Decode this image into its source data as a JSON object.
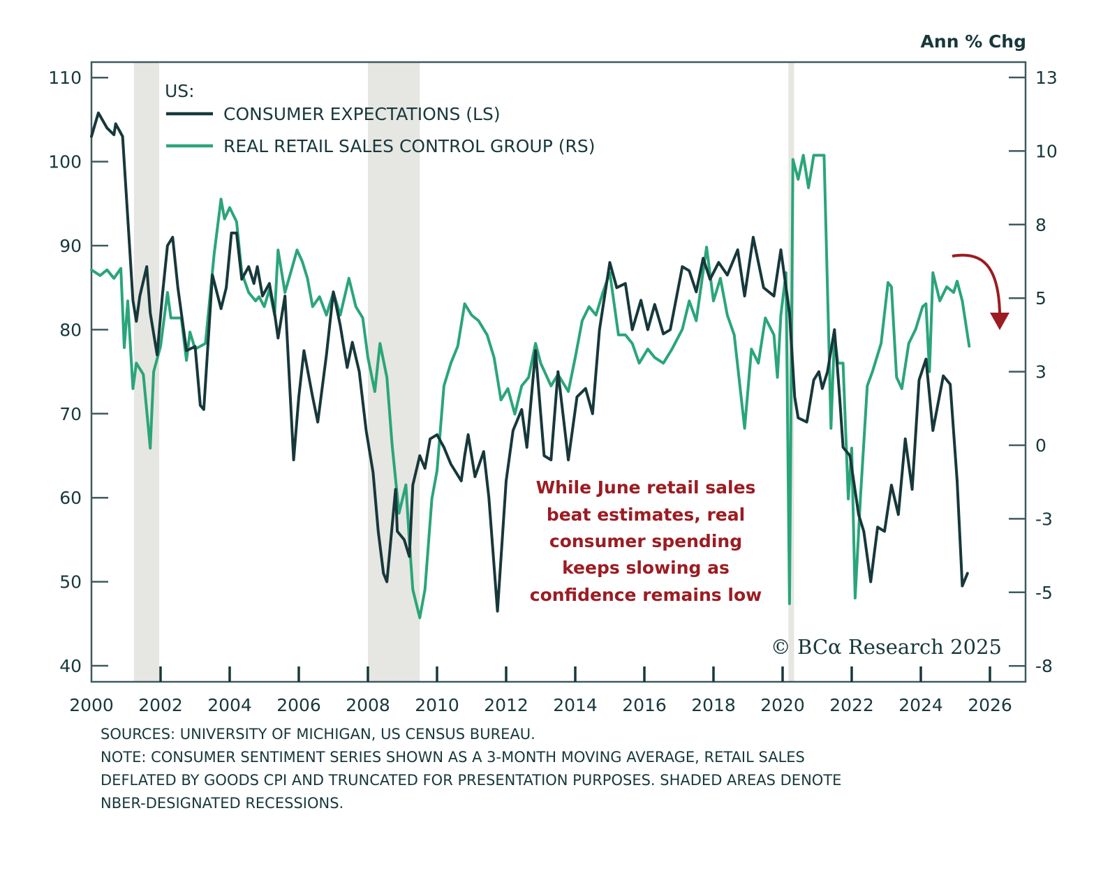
{
  "chart_data": {
    "type": "line",
    "title": "",
    "right_axis_label": "Ann % Chg",
    "legend": {
      "region_label": "US:",
      "entries": [
        {
          "name": "CONSUMER EXPECTATIONS (LS)",
          "color": "#17383b"
        },
        {
          "name": "REAL RETAIL SALES CONTROL GROUP (RS)",
          "color": "#2aa57a"
        }
      ],
      "placement": "top-left"
    },
    "x_axis": {
      "min": 2000,
      "max": 2026.5,
      "ticks": [
        "2000",
        "2002",
        "2004",
        "2006",
        "2008",
        "2010",
        "2012",
        "2014",
        "2016",
        "2018",
        "2020",
        "2022",
        "2024",
        "2026"
      ]
    },
    "left_axis": {
      "min": 38,
      "max": 113.5,
      "ticks": [
        110,
        100,
        90,
        80,
        70,
        60,
        50,
        40
      ]
    },
    "right_axis": {
      "tick_values": [
        13,
        10.4,
        7.8,
        5.2,
        2.6,
        0,
        -2.6,
        -5.2,
        -7.8
      ],
      "tick_labels": [
        "13",
        "10",
        "8",
        "5",
        "3",
        "0",
        "-3",
        "-5",
        "-8"
      ]
    },
    "recessions": [
      [
        2001.23,
        2001.96
      ],
      [
        2008.0,
        2009.5
      ],
      [
        2020.17,
        2020.33
      ]
    ],
    "series": [
      {
        "name": "CONSUMER EXPECTATIONS (LS)",
        "axis": "left",
        "color": "#17383b",
        "points": [
          [
            2000.0,
            103
          ],
          [
            2000.2,
            105.8
          ],
          [
            2000.45,
            104
          ],
          [
            2000.65,
            103.2
          ],
          [
            2000.7,
            104.5
          ],
          [
            2000.9,
            103
          ],
          [
            2001.07,
            92
          ],
          [
            2001.2,
            83.5
          ],
          [
            2001.3,
            81
          ],
          [
            2001.4,
            84
          ],
          [
            2001.6,
            87.5
          ],
          [
            2001.7,
            82
          ],
          [
            2001.9,
            77
          ],
          [
            2002.05,
            84
          ],
          [
            2002.2,
            90
          ],
          [
            2002.35,
            91
          ],
          [
            2002.5,
            85
          ],
          [
            2002.75,
            77.5
          ],
          [
            2003.0,
            78
          ],
          [
            2003.15,
            71
          ],
          [
            2003.25,
            70.5
          ],
          [
            2003.5,
            86.5
          ],
          [
            2003.75,
            82.5
          ],
          [
            2003.9,
            85
          ],
          [
            2004.05,
            91.5
          ],
          [
            2004.2,
            91.5
          ],
          [
            2004.35,
            86
          ],
          [
            2004.55,
            87.5
          ],
          [
            2004.7,
            85.5
          ],
          [
            2004.8,
            87.5
          ],
          [
            2004.95,
            84
          ],
          [
            2005.15,
            85.5
          ],
          [
            2005.3,
            82
          ],
          [
            2005.4,
            79
          ],
          [
            2005.6,
            84
          ],
          [
            2005.85,
            64.5
          ],
          [
            2006.0,
            72
          ],
          [
            2006.15,
            77.5
          ],
          [
            2006.4,
            72
          ],
          [
            2006.55,
            69
          ],
          [
            2006.8,
            77
          ],
          [
            2007.0,
            84.5
          ],
          [
            2007.2,
            80.5
          ],
          [
            2007.4,
            75.5
          ],
          [
            2007.55,
            78.5
          ],
          [
            2007.75,
            75
          ],
          [
            2007.95,
            68
          ],
          [
            2008.15,
            63
          ],
          [
            2008.3,
            56
          ],
          [
            2008.45,
            51
          ],
          [
            2008.55,
            50
          ],
          [
            2008.8,
            61
          ],
          [
            2008.85,
            56
          ],
          [
            2009.05,
            55
          ],
          [
            2009.2,
            53
          ],
          [
            2009.3,
            61.5
          ],
          [
            2009.5,
            65
          ],
          [
            2009.65,
            63.5
          ],
          [
            2009.8,
            67
          ],
          [
            2010.0,
            67.5
          ],
          [
            2010.2,
            66
          ],
          [
            2010.4,
            64
          ],
          [
            2010.7,
            62
          ],
          [
            2010.8,
            65
          ],
          [
            2010.9,
            67.5
          ],
          [
            2011.1,
            62.5
          ],
          [
            2011.35,
            65.5
          ],
          [
            2011.5,
            60
          ],
          [
            2011.75,
            46.5
          ],
          [
            2012.0,
            62
          ],
          [
            2012.2,
            68
          ],
          [
            2012.45,
            70.5
          ],
          [
            2012.6,
            66
          ],
          [
            2012.85,
            77.5
          ],
          [
            2013.1,
            65
          ],
          [
            2013.3,
            64.5
          ],
          [
            2013.5,
            75
          ],
          [
            2013.8,
            64.5
          ],
          [
            2014.05,
            72
          ],
          [
            2014.3,
            73
          ],
          [
            2014.5,
            70
          ],
          [
            2014.7,
            80
          ],
          [
            2015.0,
            88
          ],
          [
            2015.2,
            85
          ],
          [
            2015.45,
            85.5
          ],
          [
            2015.65,
            80
          ],
          [
            2015.9,
            83.5
          ],
          [
            2016.1,
            80
          ],
          [
            2016.3,
            83
          ],
          [
            2016.55,
            79.5
          ],
          [
            2016.75,
            80
          ],
          [
            2017.1,
            87.5
          ],
          [
            2017.3,
            87
          ],
          [
            2017.5,
            84.5
          ],
          [
            2017.7,
            88.5
          ],
          [
            2017.9,
            86
          ],
          [
            2018.15,
            88
          ],
          [
            2018.4,
            86.5
          ],
          [
            2018.7,
            89.5
          ],
          [
            2018.9,
            84
          ],
          [
            2019.15,
            91
          ],
          [
            2019.45,
            85
          ],
          [
            2019.75,
            84
          ],
          [
            2019.95,
            89.5
          ],
          [
            2020.2,
            82
          ],
          [
            2020.35,
            72
          ],
          [
            2020.45,
            69.5
          ],
          [
            2020.7,
            69
          ],
          [
            2020.9,
            74
          ],
          [
            2021.05,
            75
          ],
          [
            2021.15,
            73
          ],
          [
            2021.3,
            75
          ],
          [
            2021.5,
            80
          ],
          [
            2021.65,
            72
          ],
          [
            2021.75,
            66
          ],
          [
            2021.95,
            65
          ],
          [
            2022.2,
            58
          ],
          [
            2022.35,
            56
          ],
          [
            2022.55,
            50
          ],
          [
            2022.75,
            56.5
          ],
          [
            2022.95,
            56
          ],
          [
            2023.15,
            61.5
          ],
          [
            2023.35,
            58
          ],
          [
            2023.55,
            67
          ],
          [
            2023.75,
            61
          ],
          [
            2023.95,
            74
          ],
          [
            2024.15,
            76.5
          ],
          [
            2024.35,
            68
          ],
          [
            2024.65,
            74.5
          ],
          [
            2024.85,
            73.5
          ],
          [
            2025.05,
            62
          ],
          [
            2025.2,
            49.5
          ],
          [
            2025.35,
            51
          ]
        ]
      },
      {
        "name": "REAL RETAIL SALES CONTROL GROUP (RS)",
        "axis": "right",
        "color": "#2aa57a",
        "points": [
          [
            2000.0,
            6.2
          ],
          [
            2000.25,
            6.0
          ],
          [
            2000.45,
            6.2
          ],
          [
            2000.65,
            5.9
          ],
          [
            2000.85,
            6.25
          ],
          [
            2000.95,
            3.45
          ],
          [
            2001.05,
            5.1
          ],
          [
            2001.2,
            2.0
          ],
          [
            2001.3,
            2.9
          ],
          [
            2001.5,
            2.5
          ],
          [
            2001.7,
            -0.1
          ],
          [
            2001.8,
            2.6
          ],
          [
            2002.0,
            3.5
          ],
          [
            2002.2,
            5.4
          ],
          [
            2002.3,
            4.5
          ],
          [
            2002.6,
            4.5
          ],
          [
            2002.75,
            3.0
          ],
          [
            2002.85,
            4.0
          ],
          [
            2003.0,
            3.4
          ],
          [
            2003.3,
            3.6
          ],
          [
            2003.55,
            6.75
          ],
          [
            2003.75,
            8.7
          ],
          [
            2003.85,
            8.0
          ],
          [
            2004.0,
            8.4
          ],
          [
            2004.2,
            7.9
          ],
          [
            2004.35,
            6.1
          ],
          [
            2004.55,
            5.4
          ],
          [
            2004.75,
            5.1
          ],
          [
            2004.85,
            5.25
          ],
          [
            2005.0,
            4.9
          ],
          [
            2005.15,
            5.5
          ],
          [
            2005.3,
            4.6
          ],
          [
            2005.4,
            6.9
          ],
          [
            2005.6,
            5.4
          ],
          [
            2005.8,
            6.25
          ],
          [
            2005.95,
            6.9
          ],
          [
            2006.1,
            6.5
          ],
          [
            2006.25,
            5.9
          ],
          [
            2006.4,
            4.9
          ],
          [
            2006.6,
            5.25
          ],
          [
            2006.8,
            4.6
          ],
          [
            2007.0,
            5.4
          ],
          [
            2007.2,
            4.6
          ],
          [
            2007.45,
            5.9
          ],
          [
            2007.65,
            4.9
          ],
          [
            2007.85,
            4.5
          ],
          [
            2008.0,
            3.1
          ],
          [
            2008.2,
            1.9
          ],
          [
            2008.35,
            3.6
          ],
          [
            2008.55,
            2.4
          ],
          [
            2008.7,
            0
          ],
          [
            2008.9,
            -2.4
          ],
          [
            2009.1,
            -1.4
          ],
          [
            2009.2,
            -3.4
          ],
          [
            2009.3,
            -5.1
          ],
          [
            2009.5,
            -6.1
          ],
          [
            2009.65,
            -5.1
          ],
          [
            2009.85,
            -1.9
          ],
          [
            2010.0,
            -0.9
          ],
          [
            2010.2,
            2.1
          ],
          [
            2010.4,
            2.9
          ],
          [
            2010.6,
            3.5
          ],
          [
            2010.8,
            5.0
          ],
          [
            2011.0,
            4.6
          ],
          [
            2011.2,
            4.4
          ],
          [
            2011.45,
            3.9
          ],
          [
            2011.65,
            3.1
          ],
          [
            2011.85,
            1.6
          ],
          [
            2012.05,
            2.0
          ],
          [
            2012.25,
            1.1
          ],
          [
            2012.45,
            2.1
          ],
          [
            2012.65,
            2.4
          ],
          [
            2012.85,
            3.6
          ],
          [
            2013.0,
            2.9
          ],
          [
            2013.3,
            2.1
          ],
          [
            2013.5,
            2.5
          ],
          [
            2013.8,
            1.9
          ],
          [
            2014.0,
            3.1
          ],
          [
            2014.2,
            4.4
          ],
          [
            2014.4,
            4.9
          ],
          [
            2014.6,
            4.6
          ],
          [
            2014.8,
            5.4
          ],
          [
            2015.0,
            6.1
          ],
          [
            2015.25,
            3.9
          ],
          [
            2015.45,
            3.9
          ],
          [
            2015.65,
            3.6
          ],
          [
            2015.85,
            2.9
          ],
          [
            2016.1,
            3.4
          ],
          [
            2016.3,
            3.1
          ],
          [
            2016.55,
            2.9
          ],
          [
            2016.8,
            3.4
          ],
          [
            2017.1,
            4.1
          ],
          [
            2017.3,
            5.1
          ],
          [
            2017.5,
            4.4
          ],
          [
            2017.8,
            7.0
          ],
          [
            2018.0,
            5.1
          ],
          [
            2018.2,
            5.9
          ],
          [
            2018.4,
            4.6
          ],
          [
            2018.6,
            3.9
          ],
          [
            2018.9,
            0.6
          ],
          [
            2019.1,
            3.4
          ],
          [
            2019.3,
            2.9
          ],
          [
            2019.5,
            4.5
          ],
          [
            2019.75,
            3.9
          ],
          [
            2019.85,
            2.4
          ],
          [
            2019.95,
            4.6
          ],
          [
            2020.1,
            6.1
          ],
          [
            2020.2,
            -5.6
          ],
          [
            2020.3,
            10.1
          ],
          [
            2020.45,
            9.4
          ],
          [
            2020.6,
            10.25
          ],
          [
            2020.75,
            9.1
          ],
          [
            2020.9,
            10.25
          ],
          [
            2021.2,
            10.25
          ],
          [
            2021.35,
            3.1
          ],
          [
            2021.4,
            0.6
          ],
          [
            2021.5,
            3.9
          ],
          [
            2021.6,
            2.9
          ],
          [
            2021.75,
            2.9
          ],
          [
            2021.9,
            -1.9
          ],
          [
            2022.0,
            -0.1
          ],
          [
            2022.1,
            -5.4
          ],
          [
            2022.25,
            -1.9
          ],
          [
            2022.45,
            2.1
          ],
          [
            2022.6,
            2.6
          ],
          [
            2022.85,
            3.6
          ],
          [
            2023.05,
            5.75
          ],
          [
            2023.15,
            5.6
          ],
          [
            2023.3,
            2.4
          ],
          [
            2023.45,
            2.0
          ],
          [
            2023.65,
            3.6
          ],
          [
            2023.85,
            4.1
          ],
          [
            2024.05,
            4.9
          ],
          [
            2024.15,
            5.0
          ],
          [
            2024.25,
            2.6
          ],
          [
            2024.35,
            6.1
          ],
          [
            2024.55,
            5.1
          ],
          [
            2024.75,
            5.6
          ],
          [
            2024.95,
            5.4
          ],
          [
            2025.05,
            5.8
          ],
          [
            2025.2,
            5.1
          ],
          [
            2025.4,
            3.5
          ]
        ]
      }
    ],
    "annotation": {
      "lines": [
        "While June retail sales",
        "beat estimates, real",
        "consumer spending",
        "keeps slowing as",
        "confidence remains low"
      ],
      "color": "#9b1c22"
    },
    "arrow": {
      "meaning": "retail sales trending down",
      "color": "#9b1c22"
    },
    "copyright": "© BCα Research 2025"
  },
  "footer": {
    "lines": [
      "SOURCES: UNIVERSITY OF MICHIGAN, US CENSUS BUREAU.",
      "NOTE: CONSUMER SENTIMENT SERIES SHOWN AS A 3-MONTH MOVING AVERAGE, RETAIL SALES",
      "DEFLATED BY GOODS CPI AND TRUNCATED FOR PRESENTATION PURPOSES. SHADED AREAS DENOTE",
      "NBER-DESIGNATED RECESSIONS."
    ]
  }
}
